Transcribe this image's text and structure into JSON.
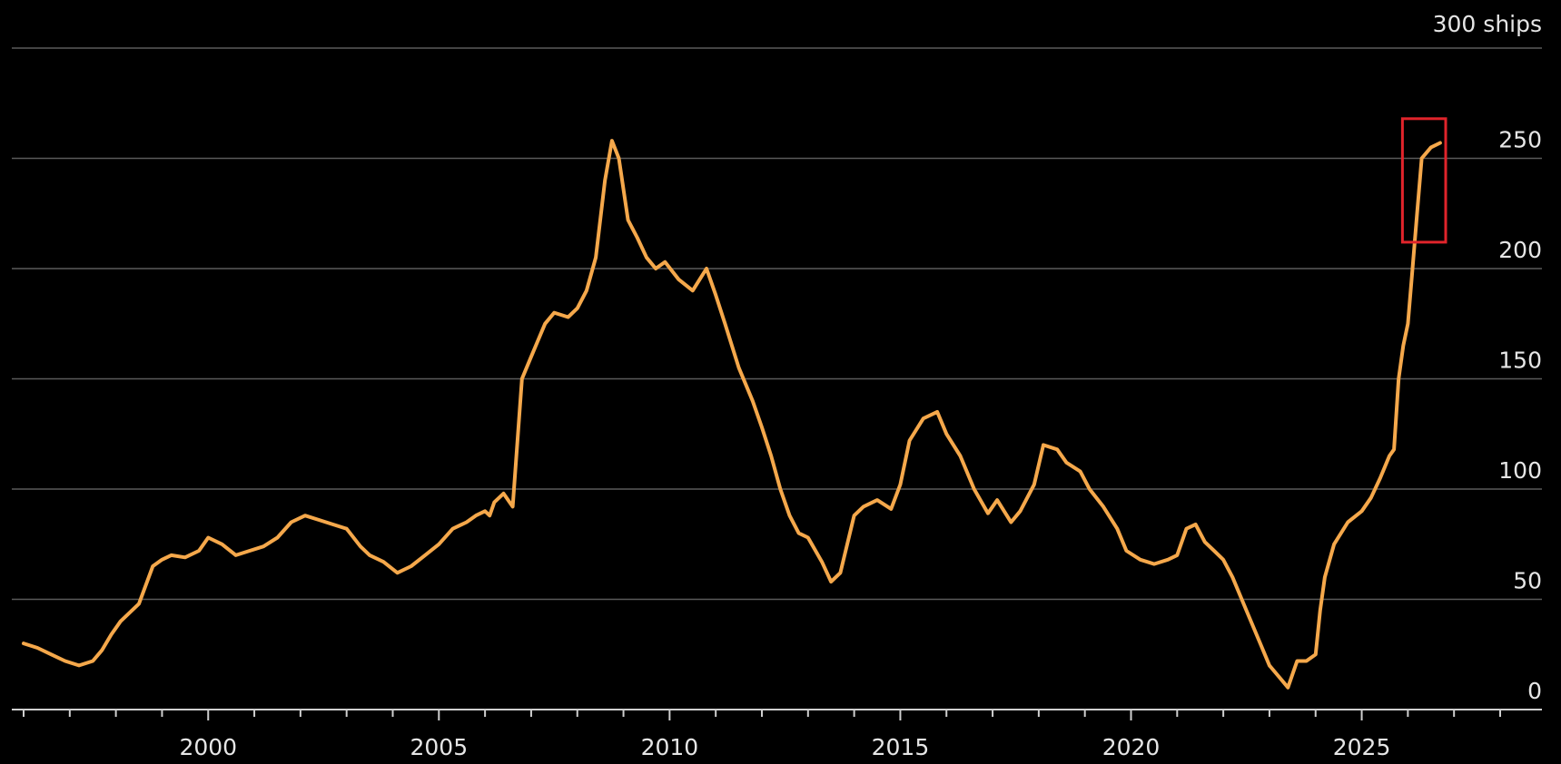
{
  "chart_data": {
    "type": "line",
    "title": "",
    "xlabel": "",
    "ylabel": "",
    "unit_label": "300 ships",
    "xlim": [
      1996.0,
      2028.0
    ],
    "ylim": [
      0,
      300
    ],
    "x_ticks": [
      2000,
      2005,
      2010,
      2015,
      2020,
      2025
    ],
    "x_tick_labels": [
      "2000",
      "2005",
      "2010",
      "2015",
      "2020",
      "2025"
    ],
    "y_ticks": [
      0,
      50,
      100,
      150,
      200,
      250
    ],
    "y_tick_labels": [
      "0",
      "50",
      "100",
      "150",
      "200",
      "250"
    ],
    "grid": true,
    "series": [
      {
        "color": "#f5a84b",
        "x": [
          1996.0,
          1996.3,
          1996.6,
          1996.9,
          1997.2,
          1997.5,
          1997.7,
          1997.9,
          1998.1,
          1998.5,
          1998.8,
          1999.0,
          1999.2,
          1999.5,
          1999.8,
          2000.0,
          2000.3,
          2000.6,
          2000.9,
          2001.2,
          2001.5,
          2001.8,
          2002.1,
          2002.4,
          2002.7,
          2003.0,
          2003.3,
          2003.5,
          2003.8,
          2004.1,
          2004.4,
          2004.7,
          2005.0,
          2005.3,
          2005.6,
          2005.8,
          2006.0,
          2006.1,
          2006.2,
          2006.4,
          2006.6,
          2006.8,
          2007.0,
          2007.3,
          2007.5,
          2007.8,
          2008.0,
          2008.2,
          2008.4,
          2008.6,
          2008.75,
          2008.9,
          2009.1,
          2009.3,
          2009.5,
          2009.7,
          2009.9,
          2010.2,
          2010.5,
          2010.8,
          2011.0,
          2011.2,
          2011.5,
          2011.8,
          2012.0,
          2012.2,
          2012.4,
          2012.6,
          2012.8,
          2013.0,
          2013.3,
          2013.5,
          2013.7,
          2014.0,
          2014.2,
          2014.5,
          2014.8,
          2015.0,
          2015.2,
          2015.5,
          2015.8,
          2016.0,
          2016.3,
          2016.6,
          2016.9,
          2017.1,
          2017.4,
          2017.6,
          2017.9,
          2018.1,
          2018.4,
          2018.6,
          2018.9,
          2019.1,
          2019.4,
          2019.7,
          2019.9,
          2020.2,
          2020.5,
          2020.8,
          2021.0,
          2021.2,
          2021.4,
          2021.6,
          2021.8,
          2022.0,
          2022.2,
          2022.5,
          2022.8,
          2023.0,
          2023.2,
          2023.4,
          2023.6,
          2023.8,
          2024.0,
          2024.1,
          2024.2,
          2024.4,
          2024.7,
          2025.0,
          2025.2,
          2025.4,
          2025.6,
          2025.7,
          2025.8,
          2025.9,
          2026.0,
          2026.1,
          2026.2,
          2026.3,
          2026.5,
          2026.7
        ],
        "y": [
          30,
          28,
          25,
          22,
          20,
          22,
          27,
          34,
          40,
          48,
          65,
          68,
          70,
          69,
          72,
          78,
          75,
          70,
          72,
          74,
          78,
          85,
          88,
          86,
          84,
          82,
          74,
          70,
          67,
          62,
          65,
          70,
          75,
          82,
          85,
          88,
          90,
          88,
          94,
          98,
          92,
          150,
          160,
          175,
          180,
          178,
          182,
          190,
          205,
          240,
          258,
          250,
          222,
          214,
          205,
          200,
          203,
          195,
          190,
          200,
          188,
          175,
          155,
          140,
          128,
          115,
          100,
          88,
          80,
          78,
          67,
          58,
          62,
          88,
          92,
          95,
          91,
          102,
          122,
          132,
          135,
          125,
          115,
          100,
          89,
          95,
          85,
          90,
          102,
          120,
          118,
          112,
          108,
          100,
          92,
          82,
          72,
          68,
          66,
          68,
          70,
          82,
          84,
          76,
          72,
          68,
          60,
          45,
          30,
          20,
          15,
          10,
          22,
          22,
          25,
          45,
          60,
          75,
          85,
          90,
          96,
          105,
          115,
          118,
          150,
          165,
          175,
          200,
          225,
          250,
          255,
          257
        ]
      }
    ]
  },
  "highlight": {
    "color": "#e0242b",
    "x_range": [
      2026.0,
      2026.7
    ],
    "y_range": [
      212,
      268
    ]
  }
}
